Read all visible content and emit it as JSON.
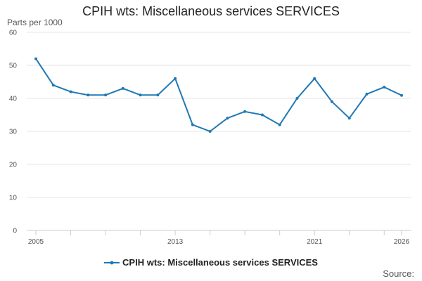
{
  "chart_data": {
    "type": "line",
    "title": "CPIH wts: Miscellaneous services SERVICES",
    "ylabel": "Parts per 1000",
    "xlabel": "",
    "x": [
      2005,
      2006,
      2007,
      2008,
      2009,
      2010,
      2011,
      2012,
      2013,
      2014,
      2015,
      2016,
      2017,
      2018,
      2019,
      2020,
      2021,
      2022,
      2023,
      2024,
      2025,
      2026
    ],
    "x_tick_labels": [
      "2005",
      "2013",
      "2021",
      "2026"
    ],
    "series": [
      {
        "name": "CPIH wts: Miscellaneous services SERVICES",
        "color": "#1f78b4",
        "values": [
          52,
          44,
          42,
          41,
          41,
          43,
          41,
          41,
          46,
          32,
          30,
          34,
          36,
          35,
          32,
          40,
          46,
          39,
          34,
          41.3,
          43.4,
          40.9
        ]
      }
    ],
    "ylim": [
      0,
      60
    ],
    "yticks": [
      0,
      10,
      20,
      30,
      40,
      50,
      60
    ],
    "grid": true,
    "legend_position": "bottom"
  },
  "footer": {
    "source_label": "Source:"
  }
}
